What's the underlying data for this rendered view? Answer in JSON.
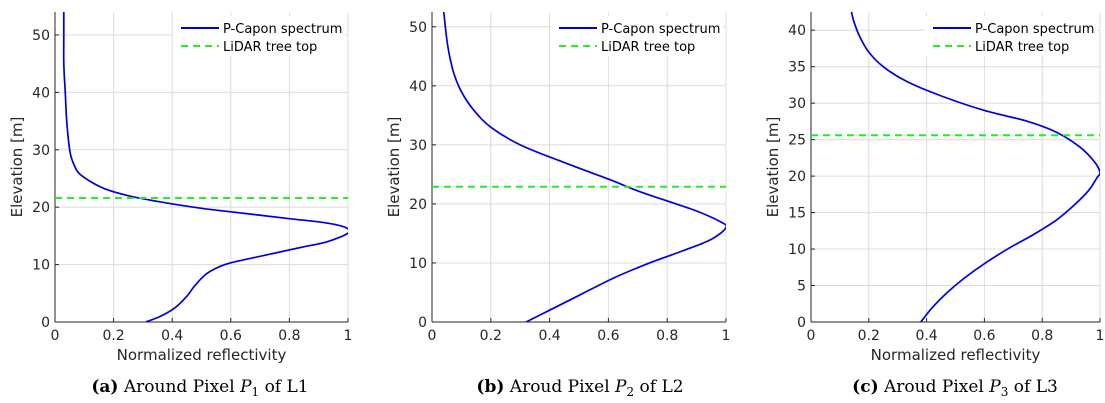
{
  "chart_data": [
    {
      "type": "line",
      "panel": "a",
      "caption": {
        "letter": "(a)",
        "prefix": "Around Pixel",
        "pixel": "P",
        "sub": "1",
        "suffix": "of L1"
      },
      "xlabel": "Normalized reflectivity",
      "ylabel": "Elevation [m]",
      "xlim": [
        0,
        1
      ],
      "ylim": [
        0,
        54
      ],
      "xticks": [
        0,
        0.2,
        0.4,
        0.6,
        0.8,
        1
      ],
      "xtick_labels": [
        "0",
        "0.2",
        "0.4",
        "0.6",
        "0.8",
        "1"
      ],
      "yticks": [
        0,
        10,
        20,
        30,
        40,
        50
      ],
      "ytick_labels": [
        "0",
        "10",
        "20",
        "30",
        "40",
        "50"
      ],
      "grid": true,
      "legend": {
        "position": "top-right",
        "entries": [
          "P-Capon spectrum",
          "LiDAR tree top"
        ]
      },
      "series": [
        {
          "name": "P-Capon spectrum",
          "style": "solid",
          "color": "#0000dd",
          "points": [
            [
              0.31,
              0
            ],
            [
              0.36,
              1
            ],
            [
              0.41,
              2.5
            ],
            [
              0.45,
              4.5
            ],
            [
              0.48,
              6.5
            ],
            [
              0.52,
              8.5
            ],
            [
              0.58,
              10
            ],
            [
              0.66,
              11
            ],
            [
              0.75,
              12
            ],
            [
              0.84,
              13
            ],
            [
              0.93,
              14
            ],
            [
              1.0,
              15.5
            ],
            [
              0.99,
              16.5
            ],
            [
              0.92,
              17.3
            ],
            [
              0.8,
              18
            ],
            [
              0.65,
              18.9
            ],
            [
              0.5,
              19.8
            ],
            [
              0.35,
              21
            ],
            [
              0.25,
              22
            ],
            [
              0.17,
              23.2
            ],
            [
              0.12,
              24.5
            ],
            [
              0.08,
              26
            ],
            [
              0.06,
              28
            ],
            [
              0.05,
              30
            ],
            [
              0.04,
              35
            ],
            [
              0.035,
              40
            ],
            [
              0.03,
              45
            ],
            [
              0.03,
              50
            ],
            [
              0.03,
              54
            ]
          ]
        },
        {
          "name": "LiDAR tree top",
          "style": "dashed",
          "color": "#22ee22",
          "y": 21.6
        }
      ]
    },
    {
      "type": "line",
      "panel": "b",
      "caption": {
        "letter": "(b)",
        "prefix": "Aroud Pixel",
        "pixel": "P",
        "sub": "2",
        "suffix": "of L2"
      },
      "xlabel": "",
      "ylabel": "Elevation [m]",
      "xlim": [
        0,
        1
      ],
      "ylim": [
        0,
        52.5
      ],
      "xticks": [
        0,
        0.2,
        0.4,
        0.6,
        0.8,
        1
      ],
      "xtick_labels": [
        "0",
        "0.2",
        "0.4",
        "0.6",
        "0.8",
        "1"
      ],
      "yticks": [
        0,
        10,
        20,
        30,
        40,
        50
      ],
      "ytick_labels": [
        "0",
        "10",
        "20",
        "30",
        "40",
        "50"
      ],
      "grid": true,
      "legend": {
        "position": "top-right",
        "entries": [
          "P-Capon spectrum",
          "LiDAR tree top"
        ]
      },
      "series": [
        {
          "name": "P-Capon spectrum",
          "style": "solid",
          "color": "#0000dd",
          "points": [
            [
              0.32,
              0
            ],
            [
              0.4,
              2
            ],
            [
              0.5,
              4.5
            ],
            [
              0.62,
              7.5
            ],
            [
              0.74,
              10
            ],
            [
              0.85,
              12
            ],
            [
              0.95,
              14
            ],
            [
              1.0,
              16
            ],
            [
              0.98,
              17
            ],
            [
              0.9,
              18.8
            ],
            [
              0.8,
              20.5
            ],
            [
              0.7,
              22.2
            ],
            [
              0.6,
              24.2
            ],
            [
              0.45,
              27
            ],
            [
              0.3,
              30
            ],
            [
              0.2,
              33
            ],
            [
              0.14,
              36
            ],
            [
              0.1,
              39
            ],
            [
              0.075,
              42
            ],
            [
              0.06,
              45
            ],
            [
              0.05,
              48
            ],
            [
              0.04,
              52.5
            ]
          ]
        },
        {
          "name": "LiDAR tree top",
          "style": "dashed",
          "color": "#22ee22",
          "y": 22.9
        }
      ]
    },
    {
      "type": "line",
      "panel": "c",
      "caption": {
        "letter": "(c)",
        "prefix": "Aroud Pixel",
        "pixel": "P",
        "sub": "3",
        "suffix": "of L3"
      },
      "xlabel": "Normalized reflectivity",
      "ylabel": "Elevation [m]",
      "xlim": [
        0,
        1
      ],
      "ylim": [
        0,
        42.5
      ],
      "xticks": [
        0,
        0.2,
        0.4,
        0.6,
        0.8,
        1
      ],
      "xtick_labels": [
        "0",
        "0.2",
        "0.4",
        "0.6",
        "0.8",
        "1"
      ],
      "yticks": [
        0,
        5,
        10,
        15,
        20,
        25,
        30,
        35,
        40
      ],
      "ytick_labels": [
        "0",
        "5",
        "10",
        "15",
        "20",
        "25",
        "30",
        "35",
        "40"
      ],
      "grid": true,
      "legend": {
        "position": "top-right",
        "entries": [
          "P-Capon spectrum",
          "LiDAR tree top"
        ]
      },
      "series": [
        {
          "name": "P-Capon spectrum",
          "style": "solid",
          "color": "#0000dd",
          "points": [
            [
              0.38,
              0
            ],
            [
              0.42,
              2
            ],
            [
              0.47,
              4
            ],
            [
              0.53,
              6
            ],
            [
              0.6,
              8
            ],
            [
              0.68,
              10
            ],
            [
              0.77,
              12
            ],
            [
              0.85,
              14
            ],
            [
              0.91,
              16
            ],
            [
              0.96,
              18
            ],
            [
              0.99,
              19.8
            ],
            [
              1.0,
              20.5
            ],
            [
              0.98,
              22
            ],
            [
              0.93,
              24
            ],
            [
              0.85,
              26
            ],
            [
              0.75,
              27.5
            ],
            [
              0.6,
              29
            ],
            [
              0.45,
              31
            ],
            [
              0.33,
              33
            ],
            [
              0.25,
              35
            ],
            [
              0.2,
              37
            ],
            [
              0.17,
              39
            ],
            [
              0.15,
              41
            ],
            [
              0.14,
              42.5
            ]
          ]
        },
        {
          "name": "LiDAR tree top",
          "style": "dashed",
          "color": "#22ee22",
          "y": 25.6
        }
      ]
    }
  ]
}
